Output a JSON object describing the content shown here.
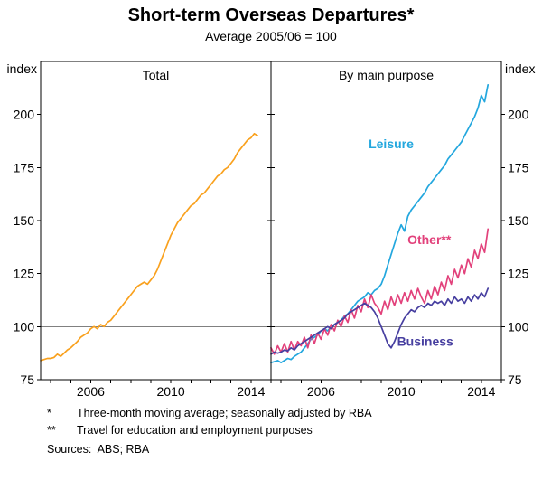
{
  "chart_data": {
    "type": "line",
    "title": "Short-term Overseas Departures*",
    "subtitle": "Average 2005/06 = 100",
    "y_axis_label": "index",
    "ylim": [
      75,
      225
    ],
    "y_ticks": [
      75,
      100,
      125,
      150,
      175,
      200
    ],
    "reference_line": 100,
    "xlim": [
      2003.5,
      2015
    ],
    "x_start": 2003.5,
    "x_step": 0.1666667,
    "x_tick_labels": [
      2006,
      2010,
      2014
    ],
    "grid": "off",
    "legend": "in-plot labels",
    "panels": [
      {
        "title": "Total",
        "series": [
          {
            "name": "Total",
            "color": "#F9A11E",
            "values": [
              84,
              84.5,
              85,
              85,
              85.5,
              87,
              86,
              87.5,
              89,
              90,
              91.5,
              93,
              95,
              96,
              97,
              99,
              100,
              99,
              101,
              100,
              102,
              103,
              105,
              107,
              109,
              111,
              113,
              115,
              117,
              119,
              120,
              121,
              120,
              122,
              124,
              127,
              131,
              135,
              139,
              143,
              146,
              149,
              151,
              153,
              155,
              157,
              158,
              160,
              162,
              163,
              165,
              167,
              169,
              171,
              172,
              174,
              175,
              177,
              179,
              182,
              184,
              186,
              188,
              189,
              191,
              190
            ]
          }
        ]
      },
      {
        "title": "By main purpose",
        "series": [
          {
            "name": "Leisure",
            "color": "#23A7DE",
            "label_pos": [
              2009.5,
              184
            ],
            "values": [
              83,
              83.5,
              84,
              83,
              84,
              85,
              84.5,
              86,
              87,
              88,
              90,
              92,
              94,
              95,
              96,
              98,
              99,
              98,
              100,
              101,
              102,
              103,
              105,
              106,
              108,
              110,
              112,
              113,
              114,
              116,
              115,
              117,
              118,
              120,
              124,
              129,
              134,
              139,
              144,
              148,
              145,
              152,
              155,
              157,
              159,
              161,
              163,
              166,
              168,
              170,
              172,
              174,
              176,
              179,
              181,
              183,
              185,
              187,
              190,
              193,
              196,
              199,
              203,
              209,
              206,
              214
            ]
          },
          {
            "name": "Other**",
            "color": "#E2417B",
            "label_pos": [
              2011.4,
              139
            ],
            "values": [
              90,
              87,
              91,
              88,
              92,
              88,
              93,
              89,
              93,
              91,
              95,
              90,
              96,
              92,
              97,
              94,
              99,
              96,
              101,
              98,
              103,
              100,
              105,
              102,
              108,
              104,
              110,
              107,
              113,
              109,
              115,
              111,
              109,
              106,
              112,
              108,
              114,
              110,
              115,
              111,
              116,
              112,
              117,
              113,
              118,
              114,
              111,
              117,
              113,
              119,
              115,
              121,
              117,
              124,
              120,
              127,
              123,
              129,
              125,
              132,
              128,
              136,
              132,
              139,
              135,
              146
            ]
          },
          {
            "name": "Business",
            "color": "#473FA0",
            "label_pos": [
              2011.2,
              91
            ],
            "values": [
              87,
              88,
              87.5,
              88,
              89,
              88.5,
              90,
              89,
              91,
              92,
              93,
              94,
              95,
              96,
              97,
              98,
              99,
              100,
              99,
              101,
              102,
              103,
              104,
              106,
              107,
              108,
              109,
              110,
              111,
              110,
              109,
              107,
              104,
              100,
              96,
              92,
              90,
              93,
              97,
              101,
              104,
              106,
              108,
              107,
              109,
              110,
              109,
              111,
              110,
              112,
              111,
              112,
              110,
              113,
              111,
              114,
              112,
              113,
              111,
              114,
              112,
              115,
              113,
              116,
              114,
              118
            ]
          }
        ]
      }
    ],
    "footnotes": [
      {
        "marker": "*",
        "text": "Three-month moving average; seasonally adjusted by RBA"
      },
      {
        "marker": "**",
        "text": "Travel for education and employment purposes"
      }
    ],
    "sources": "Sources:  ABS; RBA"
  }
}
